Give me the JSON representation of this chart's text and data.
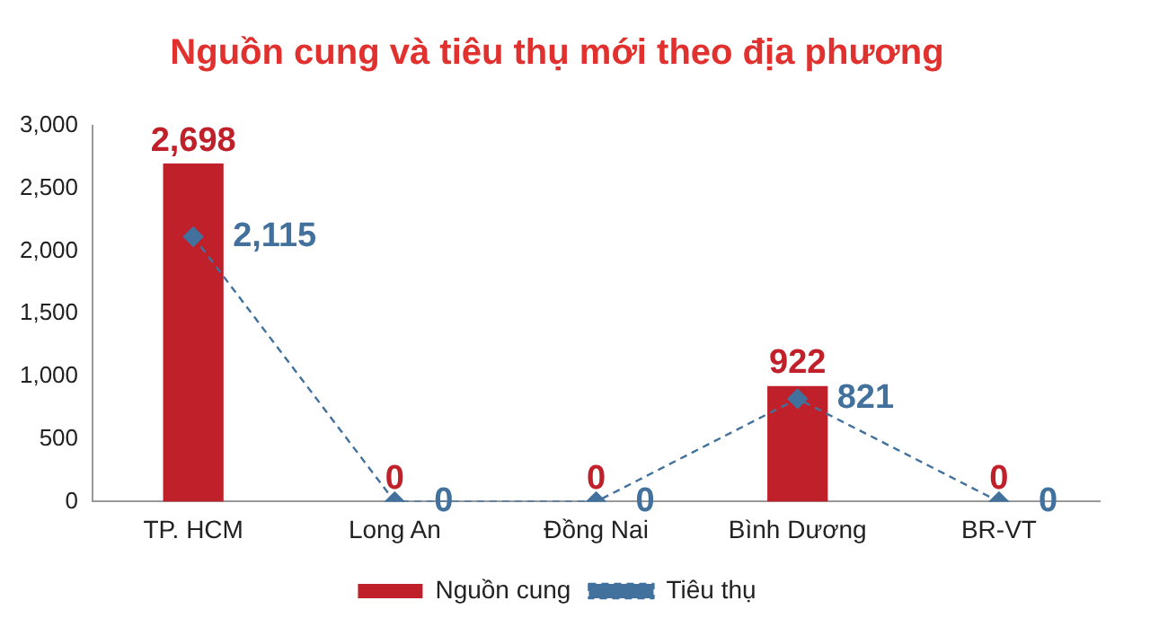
{
  "chart_data": {
    "type": "bar",
    "title": "Nguồn cung và tiêu thụ mới theo địa phương",
    "categories": [
      "TP. HCM",
      "Long An",
      "Đồng Nai",
      "Bình Dương",
      "BR-VT"
    ],
    "series": [
      {
        "name": "Nguồn cung",
        "color": "#c0202a",
        "values": [
          2698,
          0,
          0,
          922,
          0
        ],
        "value_labels": [
          "2,698",
          "0",
          "0",
          "922",
          "0"
        ]
      },
      {
        "name": "Tiêu thụ",
        "type": "line",
        "color": "#41719c",
        "values": [
          2115,
          0,
          0,
          821,
          0
        ],
        "value_labels": [
          "2,115",
          "0",
          "0",
          "821",
          "0"
        ],
        "marker": "diamond",
        "line_style": "dashed"
      }
    ],
    "ylim": [
      0,
      3000
    ],
    "yticks": [
      0,
      {
        "value": 500,
        "label": "500"
      },
      {
        "value": 1000,
        "label": "1,000"
      },
      {
        "value": 1500,
        "label": "1,500"
      },
      {
        "value": 2000,
        "label": "2,000"
      },
      {
        "value": 2500,
        "label": "2,500"
      },
      {
        "value": 3000,
        "label": "3,000"
      }
    ],
    "grid": false,
    "legend": "bottom"
  }
}
